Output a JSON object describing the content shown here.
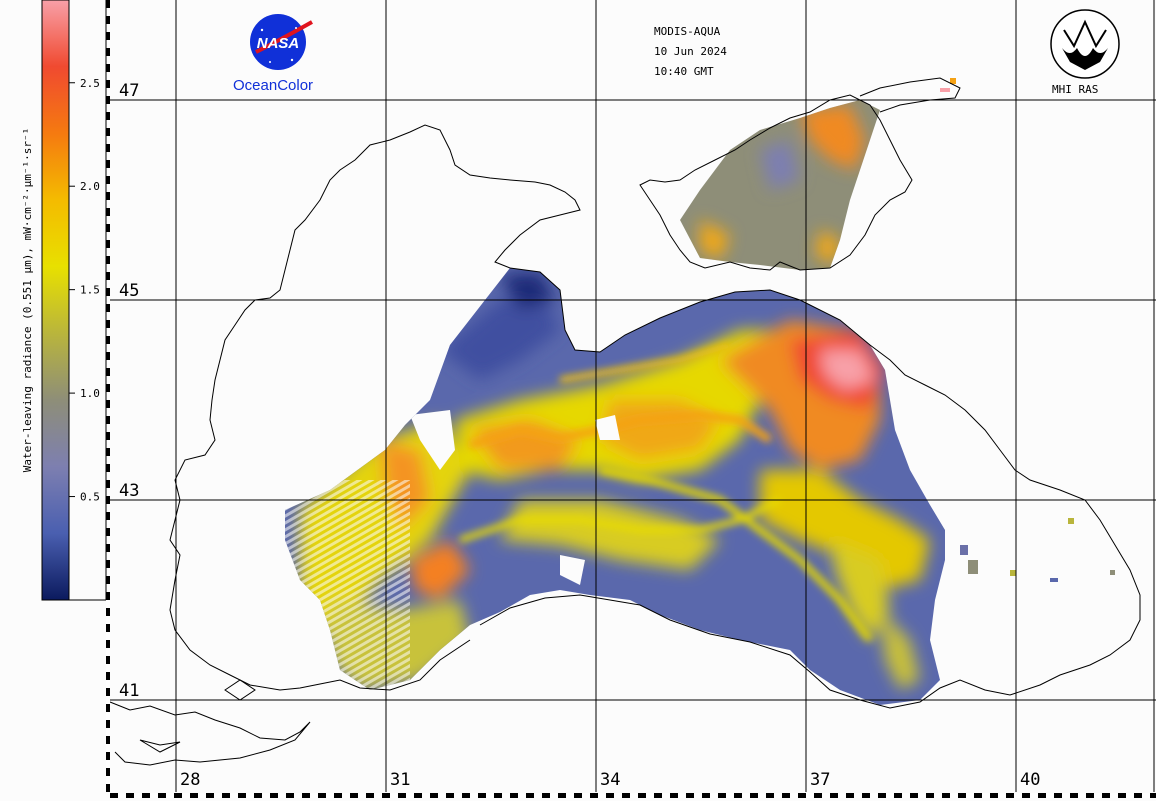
{
  "colorbar": {
    "title": "Water-leaving radiance (0.551 µm), mW·cm⁻²·µm⁻¹·sr⁻¹",
    "ticks": [
      "2.5",
      "2.0",
      "1.5",
      "1.0",
      "0.5"
    ],
    "tick_values": [
      2.5,
      2.0,
      1.5,
      1.0,
      0.5
    ],
    "range": [
      0.0,
      2.9
    ],
    "colors": [
      "#0b1a5e",
      "#4a5fb0",
      "#7d7fb0",
      "#8e8e78",
      "#b9b53c",
      "#e8e000",
      "#f4bb00",
      "#f57a10",
      "#f04a30",
      "#f8a0a8"
    ]
  },
  "header": {
    "sensor": "MODIS-AQUA",
    "date": "10 Jun 2024",
    "time": "10:40 GMT"
  },
  "logos": {
    "nasa": "NASA",
    "oceancolor": "OceanColor",
    "mhi": "MHI RAS"
  },
  "grid": {
    "lat_labels": [
      "47",
      "45",
      "43",
      "41"
    ],
    "lon_labels": [
      "28",
      "31",
      "34",
      "37",
      "40"
    ]
  },
  "colors": {
    "water_low": "#4a5fb0",
    "water_mid": "#d9c800",
    "water_high": "#f57a10",
    "water_peak": "#f8a0a8",
    "coast": "#000000",
    "background": "#fcfcfc",
    "nasa_blue": "#1030d8",
    "nasa_red": "#e0141e"
  }
}
